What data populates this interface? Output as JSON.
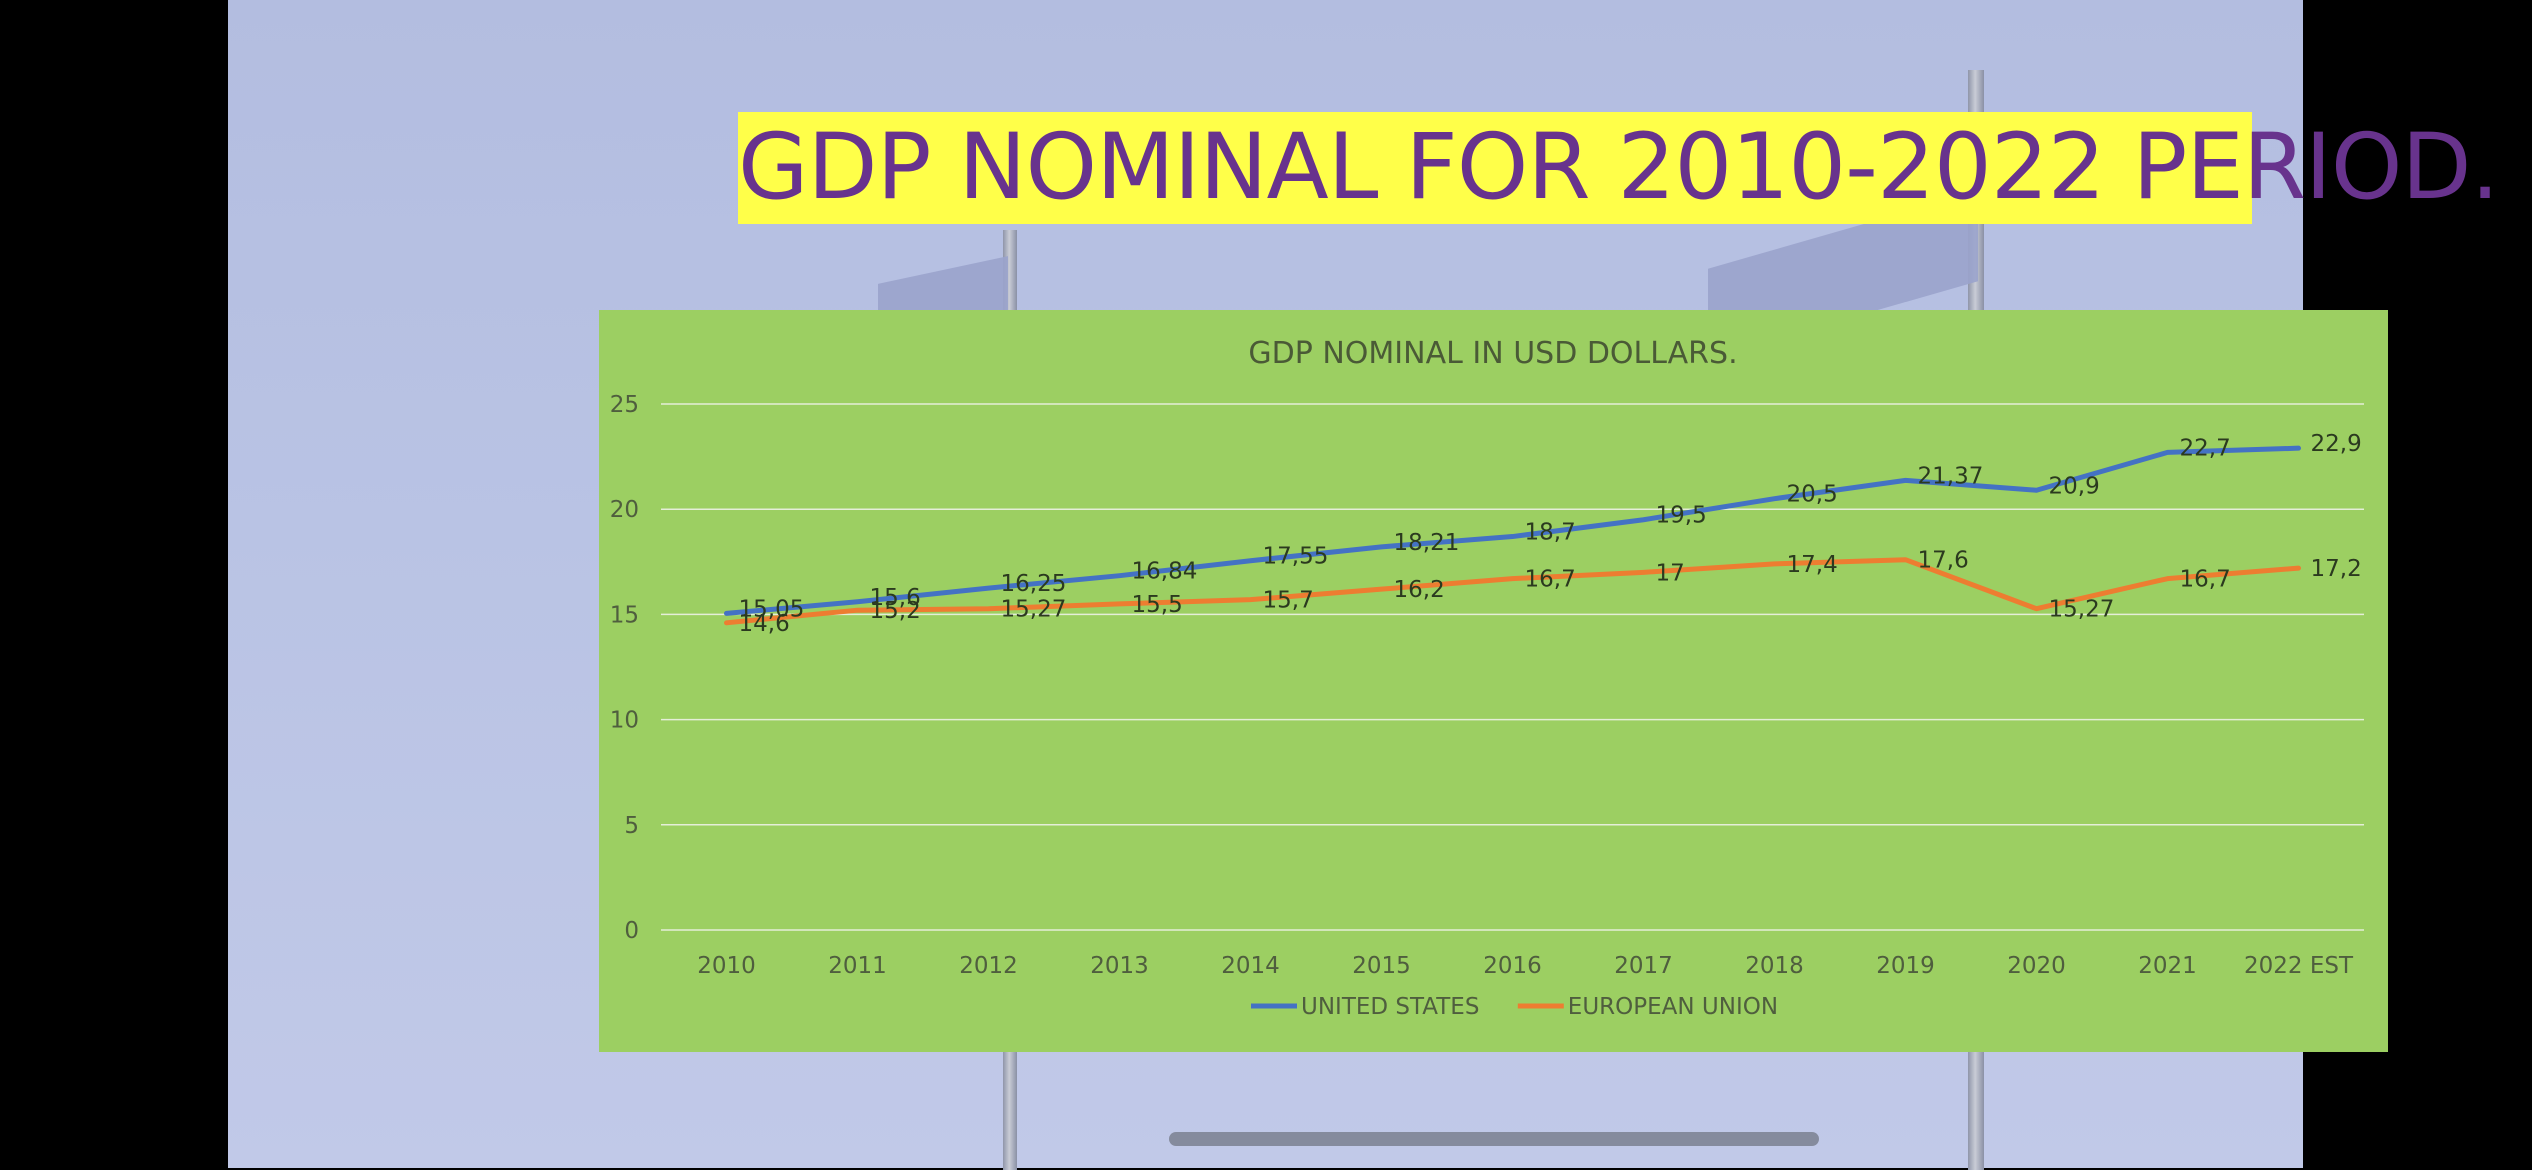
{
  "slide": {
    "title": "GDP NOMINAL FOR 2010-2022 PERIOD."
  },
  "chart_data": {
    "type": "line",
    "title": "GDP NOMINAL IN USD DOLLARS.",
    "xlabel": "",
    "ylabel": "",
    "ylim": [
      0,
      25
    ],
    "yticks": [
      "0",
      "5",
      "10",
      "15",
      "20",
      "25"
    ],
    "grid": true,
    "legend_position": "bottom",
    "categories": [
      "2010",
      "2011",
      "2012",
      "2013",
      "2014",
      "2015",
      "2016",
      "2017",
      "2018",
      "2019",
      "2020",
      "2021",
      "2022 EST"
    ],
    "series": [
      {
        "name": "UNITED STATES",
        "color": "#4472c4",
        "values": [
          15.05,
          15.6,
          16.25,
          16.84,
          17.55,
          18.21,
          18.7,
          19.5,
          20.5,
          21.37,
          20.9,
          22.7,
          22.9
        ],
        "labels": [
          "15,05",
          "15,6",
          "16,25",
          "16,84",
          "17,55",
          "18,21",
          "18,7",
          "19,5",
          "20,5",
          "21,37",
          "20,9",
          "22,7",
          "22,9"
        ]
      },
      {
        "name": "EUROPEAN UNION",
        "color": "#ed7d31",
        "values": [
          14.6,
          15.2,
          15.27,
          15.5,
          15.7,
          16.2,
          16.7,
          17,
          17.4,
          17.6,
          15.27,
          16.7,
          17.2
        ],
        "labels": [
          "14,6",
          "15,2",
          "15,27",
          "15,5",
          "15,7",
          "16,2",
          "16,7",
          "17",
          "17,4",
          "17,6",
          "15,27",
          "16,7",
          "17,2"
        ]
      }
    ]
  }
}
